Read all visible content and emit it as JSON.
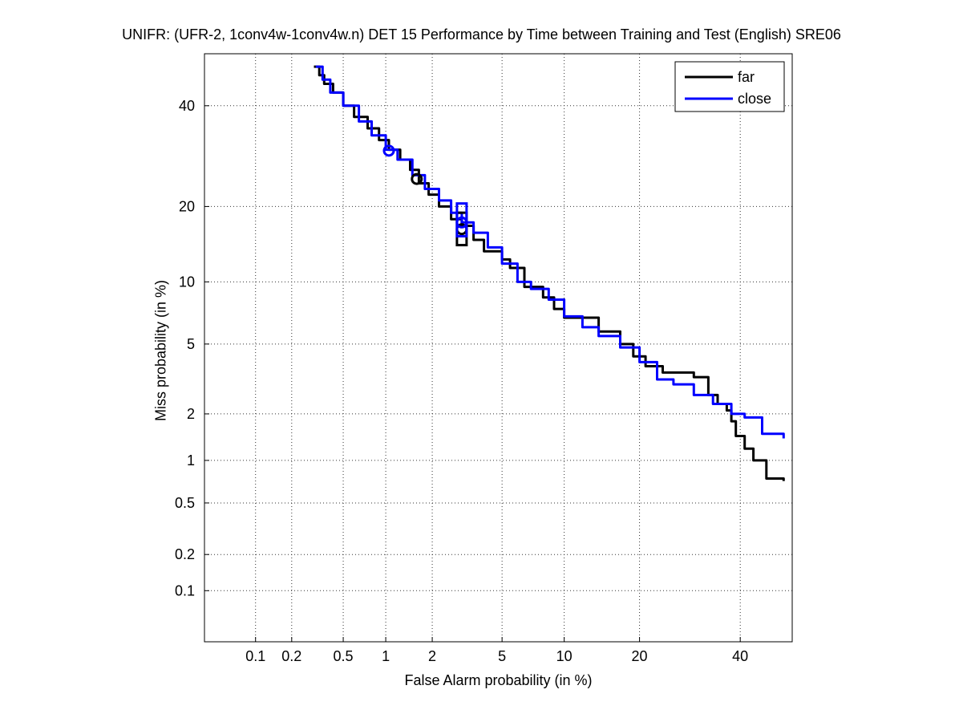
{
  "chart_data": {
    "type": "line",
    "title": "UNIFR: (UFR-2, 1conv4w-1conv4w.n) DET 15 Performance by Time between Training and Test (English) SRE06",
    "xlabel": "False Alarm probability (in %)",
    "ylabel": "Miss probability (in %)",
    "x_scale": "probit",
    "y_scale": "probit",
    "xlim": [
      0.035,
      52
    ],
    "ylim": [
      0.035,
      52
    ],
    "xticks": [
      0.1,
      0.2,
      0.5,
      1,
      2,
      5,
      10,
      20,
      40
    ],
    "xtick_labels": [
      "0.1",
      "0.2",
      "0.5",
      "1",
      "2",
      "5",
      "10",
      "20",
      "40"
    ],
    "yticks": [
      0.1,
      0.2,
      0.5,
      1,
      2,
      5,
      10,
      20,
      40
    ],
    "ytick_labels": [
      "0.1",
      "0.2",
      "0.5",
      "1",
      "2",
      "5",
      "10",
      "20",
      "40"
    ],
    "grid": true,
    "legend_position": "top-right",
    "series": [
      {
        "name": "far",
        "color": "#000000",
        "x": [
          0.3,
          0.33,
          0.36,
          0.42,
          0.5,
          0.6,
          0.75,
          0.9,
          1.05,
          1.25,
          1.45,
          1.65,
          1.9,
          2.2,
          2.6,
          3.0,
          3.5,
          4.0,
          5.0,
          5.5,
          6.5,
          8.0,
          9.0,
          10.0,
          12.0,
          14.0,
          17.0,
          19.0,
          21.0,
          24.0,
          30.0,
          33.0,
          35.0,
          37.0,
          38.0,
          39.0,
          41.0,
          43.0,
          46.0,
          50.0
        ],
        "y": [
          49.0,
          47.0,
          45.0,
          43.0,
          40.0,
          37.5,
          35.0,
          32.5,
          30.5,
          28.5,
          26.5,
          24.0,
          22.0,
          20.0,
          18.0,
          17.0,
          15.0,
          13.5,
          12.5,
          11.5,
          9.5,
          8.5,
          7.5,
          6.8,
          6.8,
          5.8,
          5.0,
          4.3,
          3.8,
          3.5,
          3.3,
          2.6,
          2.3,
          2.1,
          1.8,
          1.45,
          1.2,
          1.0,
          0.75,
          0.72
        ]
      },
      {
        "name": "close",
        "color": "#0000ff",
        "x": [
          0.31,
          0.35,
          0.4,
          0.5,
          0.65,
          0.8,
          1.0,
          1.2,
          1.5,
          1.8,
          2.2,
          2.6,
          3.0,
          3.5,
          4.2,
          5.0,
          6.0,
          7.0,
          8.5,
          10.0,
          12.0,
          14.0,
          17.0,
          20.0,
          23.0,
          26.0,
          30.0,
          34.0,
          38.0,
          41.0,
          45.0,
          50.0
        ],
        "y": [
          49.0,
          46.0,
          43.0,
          40.0,
          36.5,
          33.5,
          30.5,
          28.5,
          25.5,
          23.0,
          21.0,
          19.0,
          17.5,
          16.0,
          14.0,
          12.0,
          10.0,
          9.3,
          8.3,
          6.9,
          6.1,
          5.5,
          4.8,
          4.0,
          3.2,
          3.0,
          2.6,
          2.3,
          2.0,
          1.9,
          1.5,
          1.4
        ]
      }
    ],
    "markers": [
      {
        "series": "far",
        "shape": "circle",
        "x": 1.6,
        "y": 24.8
      },
      {
        "series": "far",
        "shape": "circle",
        "x": 3.0,
        "y": 16.5
      },
      {
        "series": "far",
        "shape": "box",
        "x": 3.0,
        "y0": 14.3,
        "y1": 19.0
      },
      {
        "series": "close",
        "shape": "circle",
        "x": 1.05,
        "y": 30.3
      },
      {
        "series": "close",
        "shape": "circle",
        "x": 3.0,
        "y": 17.5
      },
      {
        "series": "close",
        "shape": "box",
        "x": 3.0,
        "y0": 15.5,
        "y1": 20.5
      }
    ]
  }
}
